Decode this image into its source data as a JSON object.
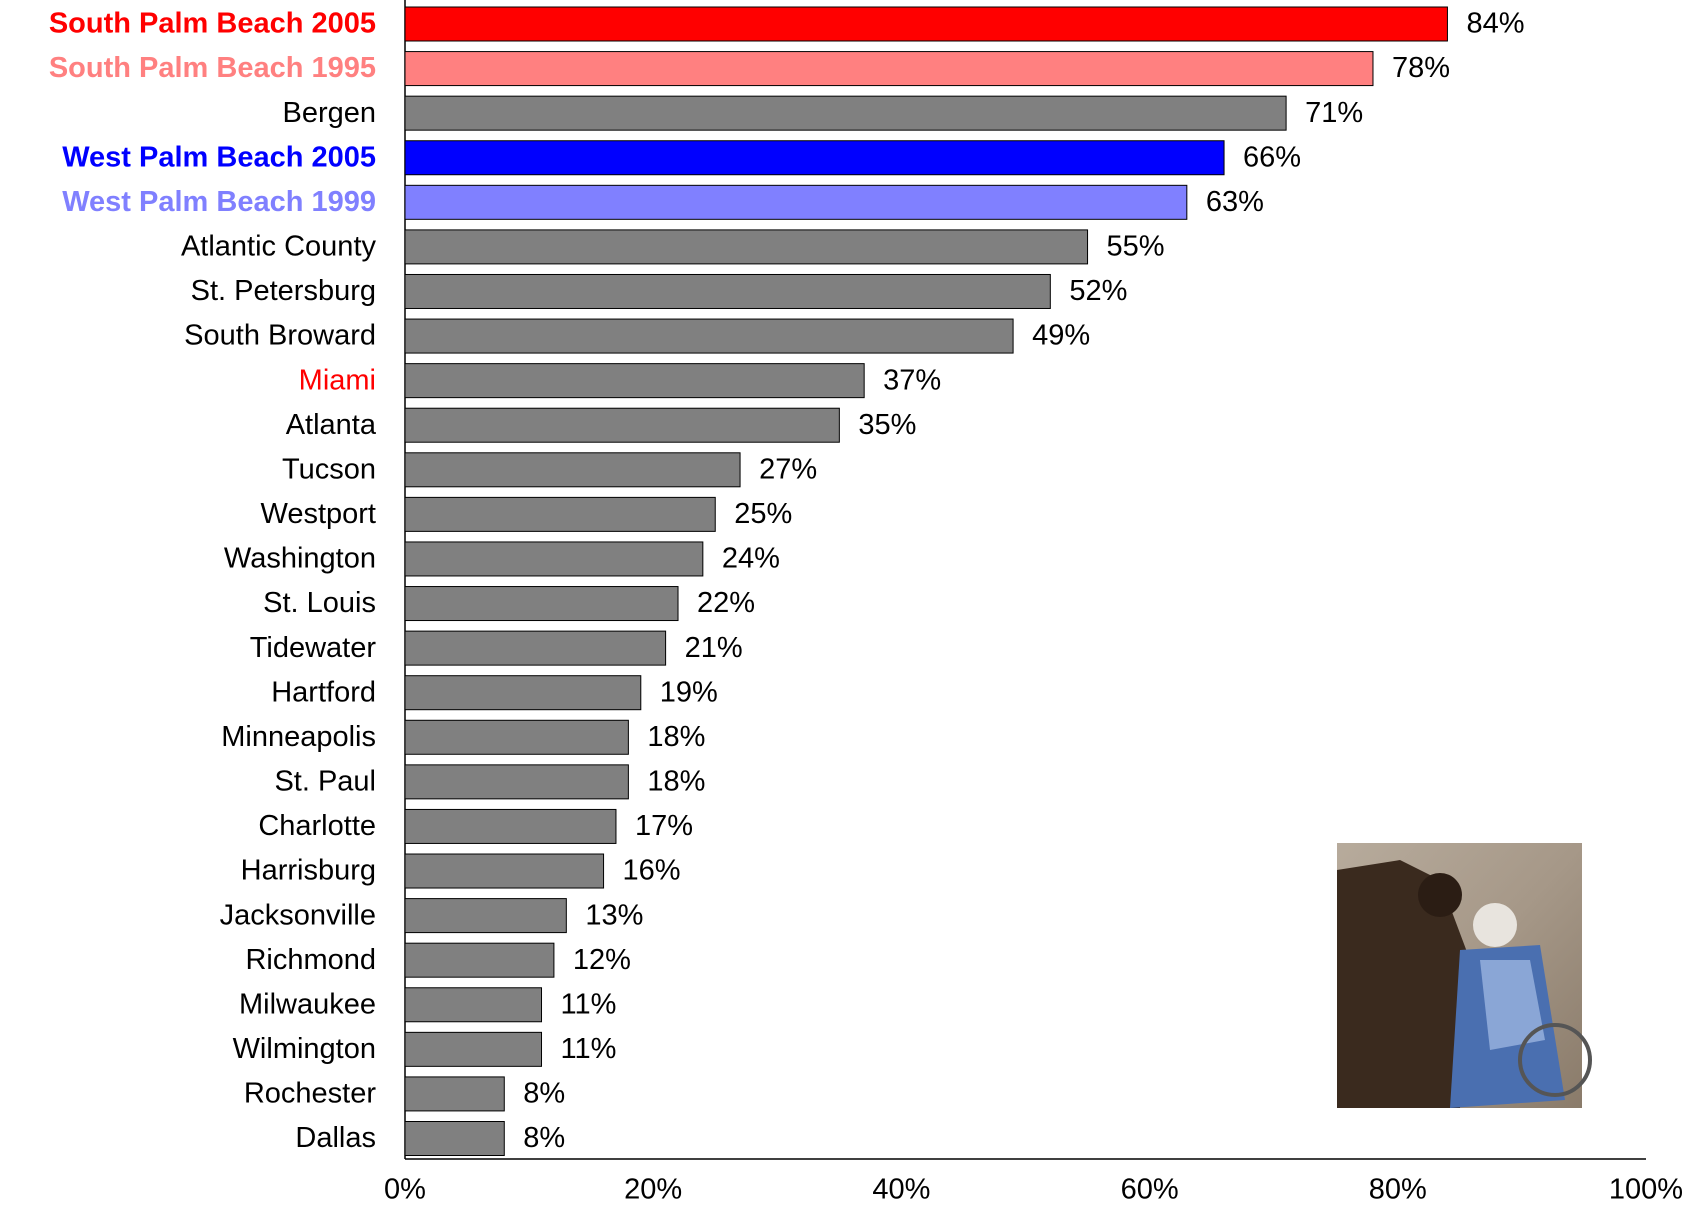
{
  "chart_data": {
    "type": "hbar",
    "categories": [
      "South Palm Beach 2005",
      "South Palm Beach 1995",
      "Bergen",
      "West Palm Beach 2005",
      "West Palm Beach 1999",
      "Atlantic County",
      "St. Petersburg",
      "South Broward",
      "Miami",
      "Atlanta",
      "Tucson",
      "Westport",
      "Washington",
      "St. Louis",
      "Tidewater",
      "Hartford",
      "Minneapolis",
      "St. Paul",
      "Charlotte",
      "Harrisburg",
      "Jacksonville",
      "Richmond",
      "Milwaukee",
      "Wilmington",
      "Rochester",
      "Dallas"
    ],
    "values": [
      84,
      78,
      71,
      66,
      63,
      55,
      52,
      49,
      37,
      35,
      27,
      25,
      24,
      22,
      21,
      19,
      18,
      18,
      17,
      16,
      13,
      12,
      11,
      11,
      8,
      8
    ],
    "value_labels": [
      "84%",
      "78%",
      "71%",
      "66%",
      "63%",
      "55%",
      "52%",
      "49%",
      "37%",
      "35%",
      "27%",
      "25%",
      "24%",
      "22%",
      "21%",
      "19%",
      "18%",
      "18%",
      "17%",
      "16%",
      "13%",
      "12%",
      "11%",
      "11%",
      "8%",
      "8%"
    ],
    "colors": [
      "#ff0000",
      "#ff8080",
      "#808080",
      "#0000ff",
      "#8080ff",
      "#808080",
      "#808080",
      "#808080",
      "#808080",
      "#808080",
      "#808080",
      "#808080",
      "#808080",
      "#808080",
      "#808080",
      "#808080",
      "#808080",
      "#808080",
      "#808080",
      "#808080",
      "#808080",
      "#808080",
      "#808080",
      "#808080",
      "#808080",
      "#808080"
    ],
    "label_colors": [
      "#ff0000",
      "#ff8080",
      "#000000",
      "#0000ff",
      "#8080ff",
      "#000000",
      "#000000",
      "#000000",
      "#ff0000",
      "#000000",
      "#000000",
      "#000000",
      "#000000",
      "#000000",
      "#000000",
      "#000000",
      "#000000",
      "#000000",
      "#000000",
      "#000000",
      "#000000",
      "#000000",
      "#000000",
      "#000000",
      "#000000",
      "#000000"
    ],
    "label_bold": [
      true,
      true,
      false,
      true,
      true,
      false,
      false,
      false,
      false,
      false,
      false,
      false,
      false,
      false,
      false,
      false,
      false,
      false,
      false,
      false,
      false,
      false,
      false,
      false,
      false,
      false
    ],
    "xlim": [
      0,
      100
    ],
    "xticks": [
      {
        "value": 0,
        "label": "0%"
      },
      {
        "value": 20,
        "label": "20%"
      },
      {
        "value": 40,
        "label": "40%"
      },
      {
        "value": 60,
        "label": "60%"
      },
      {
        "value": 80,
        "label": "80%"
      },
      {
        "value": 100,
        "label": "100%"
      }
    ],
    "grid": false
  }
}
